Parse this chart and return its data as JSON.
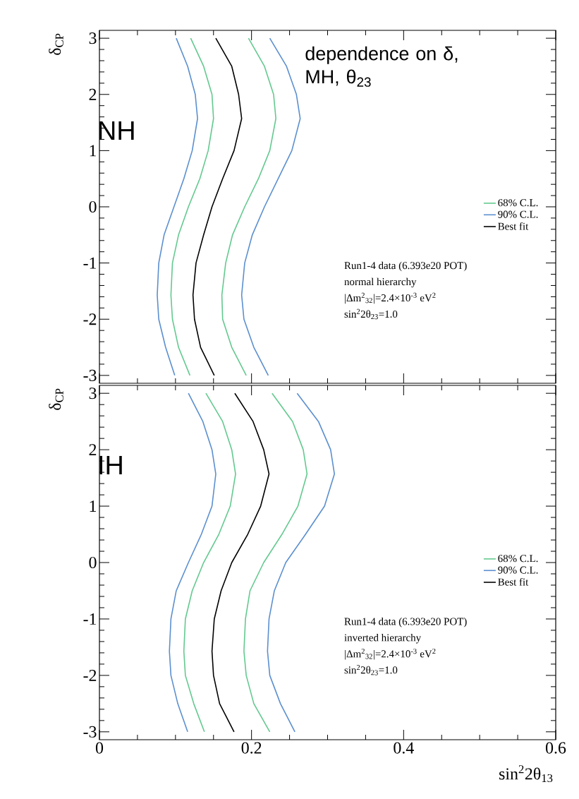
{
  "chart_data": [
    {
      "type": "line",
      "ylabel": "δ$_{CP}$",
      "xlim": [
        0,
        0.6
      ],
      "ylim": [
        -3.14,
        3.14
      ],
      "xticks": [
        0,
        0.2,
        0.4,
        0.6
      ],
      "yticks": [
        -3,
        -2,
        -1,
        0,
        1,
        2,
        3
      ],
      "tick_labels": "y",
      "legend": "right",
      "annotations": [
        "NH",
        "dependence on δ, MH, θ$_{23}$",
        "Run1-4 data (6.393e20 POT)",
        "normal hierarchy",
        "|Δm$^{2}$$_{32}$|=2.4×10$^{-3}$ eV$^{2}$",
        "sin$^{2}$2θ$_{23}$=1.0"
      ],
      "series": [
        {
          "name": "68% C.L.",
          "color": "#63c98f",
          "x": [
            0.12,
            0.137,
            0.148,
            0.15,
            0.143,
            0.132,
            0.117,
            0.104,
            0.096,
            0.094,
            0.096,
            0.104,
            0.119
          ],
          "values": [
            3,
            2.5,
            2,
            1.57,
            1,
            0.5,
            0,
            -0.5,
            -1,
            -1.57,
            -2,
            -2.5,
            -3
          ]
        },
        {
          "name": "90% C.L.",
          "color": "#5b8fcf",
          "x": [
            0.101,
            0.116,
            0.126,
            0.129,
            0.122,
            0.111,
            0.098,
            0.085,
            0.078,
            0.076,
            0.078,
            0.087,
            0.099
          ],
          "values": [
            3,
            2.5,
            2,
            1.57,
            1,
            0.5,
            0,
            -0.5,
            -1,
            -1.57,
            -2,
            -2.5,
            -3
          ]
        },
        {
          "name": "Best fit",
          "color": "#000000",
          "x": [
            0.153,
            0.174,
            0.183,
            0.187,
            0.177,
            0.162,
            0.148,
            0.137,
            0.127,
            0.123,
            0.125,
            0.133,
            0.151
          ],
          "values": [
            3,
            2.5,
            2,
            1.57,
            1,
            0.5,
            0,
            -0.5,
            -1,
            -1.57,
            -2,
            -2.5,
            -3
          ]
        },
        {
          "color": "#63c98f",
          "x": [
            0.196,
            0.217,
            0.229,
            0.232,
            0.224,
            0.209,
            0.191,
            0.175,
            0.166,
            0.161,
            0.162,
            0.174,
            0.193
          ],
          "values": [
            3,
            2.5,
            2,
            1.57,
            1,
            0.5,
            0,
            -0.5,
            -1,
            -1.57,
            -2,
            -2.5,
            -3
          ]
        },
        {
          "color": "#5b8fcf",
          "x": [
            0.224,
            0.246,
            0.259,
            0.264,
            0.253,
            0.235,
            0.217,
            0.201,
            0.191,
            0.187,
            0.19,
            0.203,
            0.222
          ],
          "values": [
            3,
            2.5,
            2,
            1.57,
            1,
            0.5,
            0,
            -0.5,
            -1,
            -1.57,
            -2,
            -2.5,
            -3
          ]
        }
      ]
    },
    {
      "type": "line",
      "ylabel": "δ$_{CP}$",
      "xlabel": "sin$^{2}$2θ$_{13}$",
      "xlim": [
        0,
        0.6
      ],
      "ylim": [
        -3.14,
        3.14
      ],
      "xticks": [
        0,
        0.2,
        0.4,
        0.6
      ],
      "yticks": [
        -3,
        -2,
        -1,
        0,
        1,
        2,
        3
      ],
      "legend": "right",
      "annotations": [
        "IH",
        "Run1-4 data (6.393e20 POT)",
        "inverted hierarchy",
        "|Δm$^{2}$$_{32}$|=2.4×10$^{-3}$ eV$^{2}$",
        "sin$^{2}$2θ$_{23}$=1.0"
      ],
      "series": [
        {
          "name": "68% C.L.",
          "color": "#63c98f",
          "x": [
            0.14,
            0.162,
            0.174,
            0.179,
            0.172,
            0.157,
            0.137,
            0.122,
            0.113,
            0.111,
            0.113,
            0.124,
            0.138
          ],
          "values": [
            3,
            2.5,
            2,
            1.57,
            1,
            0.5,
            0,
            -0.5,
            -1,
            -1.57,
            -2,
            -2.5,
            -3
          ]
        },
        {
          "name": "90% C.L.",
          "color": "#5b8fcf",
          "x": [
            0.117,
            0.136,
            0.148,
            0.153,
            0.148,
            0.134,
            0.117,
            0.101,
            0.094,
            0.092,
            0.094,
            0.103,
            0.116
          ],
          "values": [
            3,
            2.5,
            2,
            1.57,
            1,
            0.5,
            0,
            -0.5,
            -1,
            -1.57,
            -2,
            -2.5,
            -3
          ]
        },
        {
          "name": "Best fit",
          "color": "#000000",
          "x": [
            0.178,
            0.202,
            0.216,
            0.223,
            0.212,
            0.195,
            0.174,
            0.16,
            0.151,
            0.148,
            0.15,
            0.158,
            0.177
          ],
          "values": [
            3,
            2.5,
            2,
            1.57,
            1,
            0.5,
            0,
            -0.5,
            -1,
            -1.57,
            -2,
            -2.5,
            -3
          ]
        },
        {
          "color": "#63c98f",
          "x": [
            0.227,
            0.254,
            0.268,
            0.273,
            0.261,
            0.24,
            0.216,
            0.198,
            0.192,
            0.19,
            0.193,
            0.203,
            0.224
          ],
          "values": [
            3,
            2.5,
            2,
            1.57,
            1,
            0.5,
            0,
            -0.5,
            -1,
            -1.57,
            -2,
            -2.5,
            -3
          ]
        },
        {
          "color": "#5b8fcf",
          "x": [
            0.26,
            0.288,
            0.304,
            0.309,
            0.296,
            0.271,
            0.245,
            0.23,
            0.223,
            0.221,
            0.224,
            0.238,
            0.257
          ],
          "values": [
            3,
            2.5,
            2,
            1.57,
            1,
            0.5,
            0,
            -0.5,
            -1,
            -1.57,
            -2,
            -2.5,
            -3
          ]
        }
      ]
    }
  ]
}
